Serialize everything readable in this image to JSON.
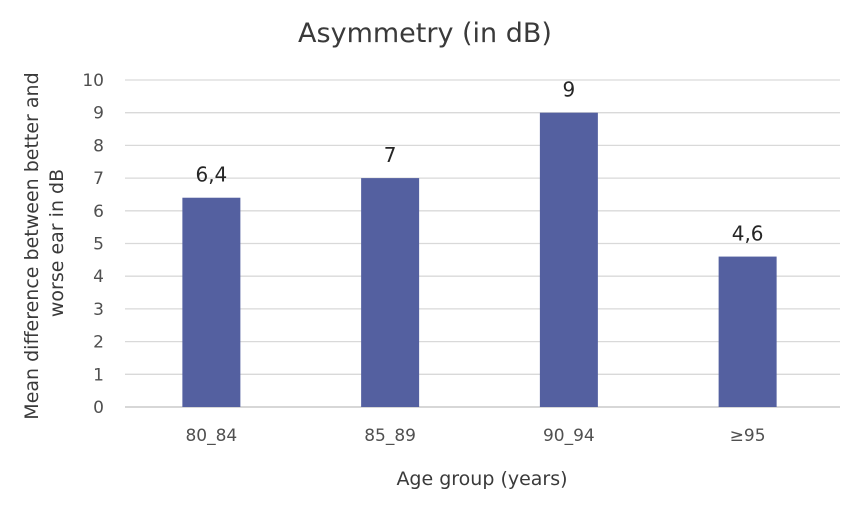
{
  "chart_data": {
    "type": "bar",
    "title": "Asymmetry (in dB)",
    "xlabel": "Age group (years)",
    "ylabel_lines": [
      "Mean difference between better and",
      "worse ear in dB"
    ],
    "categories": [
      "80_84",
      "85_89",
      "90_94",
      "≥95"
    ],
    "values": [
      6.4,
      7,
      9,
      4.6
    ],
    "value_labels": [
      "6,4",
      "7",
      "9",
      "4,6"
    ],
    "ylim": [
      0,
      10
    ],
    "yticks": [
      "0",
      "1",
      "2",
      "3",
      "4",
      "5",
      "6",
      "7",
      "8",
      "9",
      "10"
    ],
    "grid": true,
    "legend": "none",
    "bar_color": "#5460a0"
  }
}
